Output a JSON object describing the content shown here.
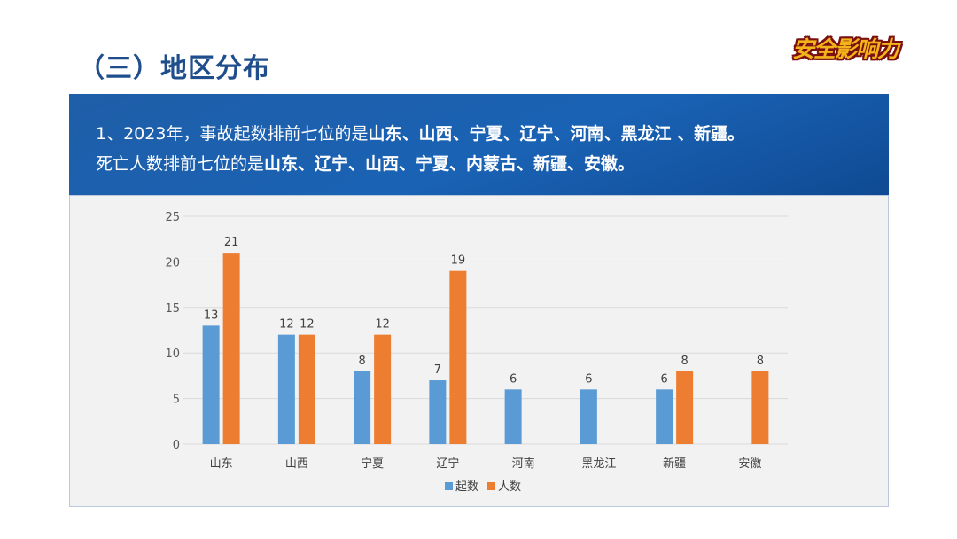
{
  "page": {
    "title": "（三）地区分布",
    "logo": "安全影响力"
  },
  "banner": {
    "line1_prefix": "1、2023年，事故起数排前七位的是",
    "line1_bold": "山东、山西、宁夏、辽宁、河南、黑龙江 、新疆。",
    "line2_prefix": "死亡人数排前七位的是",
    "line2_bold": "山东、辽宁、山西、宁夏、内蒙古、新疆、安徽。"
  },
  "colors": {
    "series1": "#5b9bd5",
    "series2": "#ed7d31",
    "grid": "#d9d9d9",
    "tick_text": "#595959"
  },
  "chart_data": {
    "type": "bar",
    "categories": [
      "山东",
      "山西",
      "宁夏",
      "辽宁",
      "河南",
      "黑龙江",
      "新疆",
      "安徽"
    ],
    "series": [
      {
        "name": "起数",
        "values": [
          13,
          12,
          8,
          7,
          6,
          6,
          6,
          null
        ]
      },
      {
        "name": "人数",
        "values": [
          21,
          12,
          12,
          19,
          null,
          null,
          8,
          8
        ]
      }
    ],
    "ylim": [
      0,
      25
    ],
    "yticks": [
      0,
      5,
      10,
      15,
      20,
      25
    ],
    "grid": true,
    "legend": "bottom",
    "title": "",
    "xlabel": "",
    "ylabel": ""
  }
}
